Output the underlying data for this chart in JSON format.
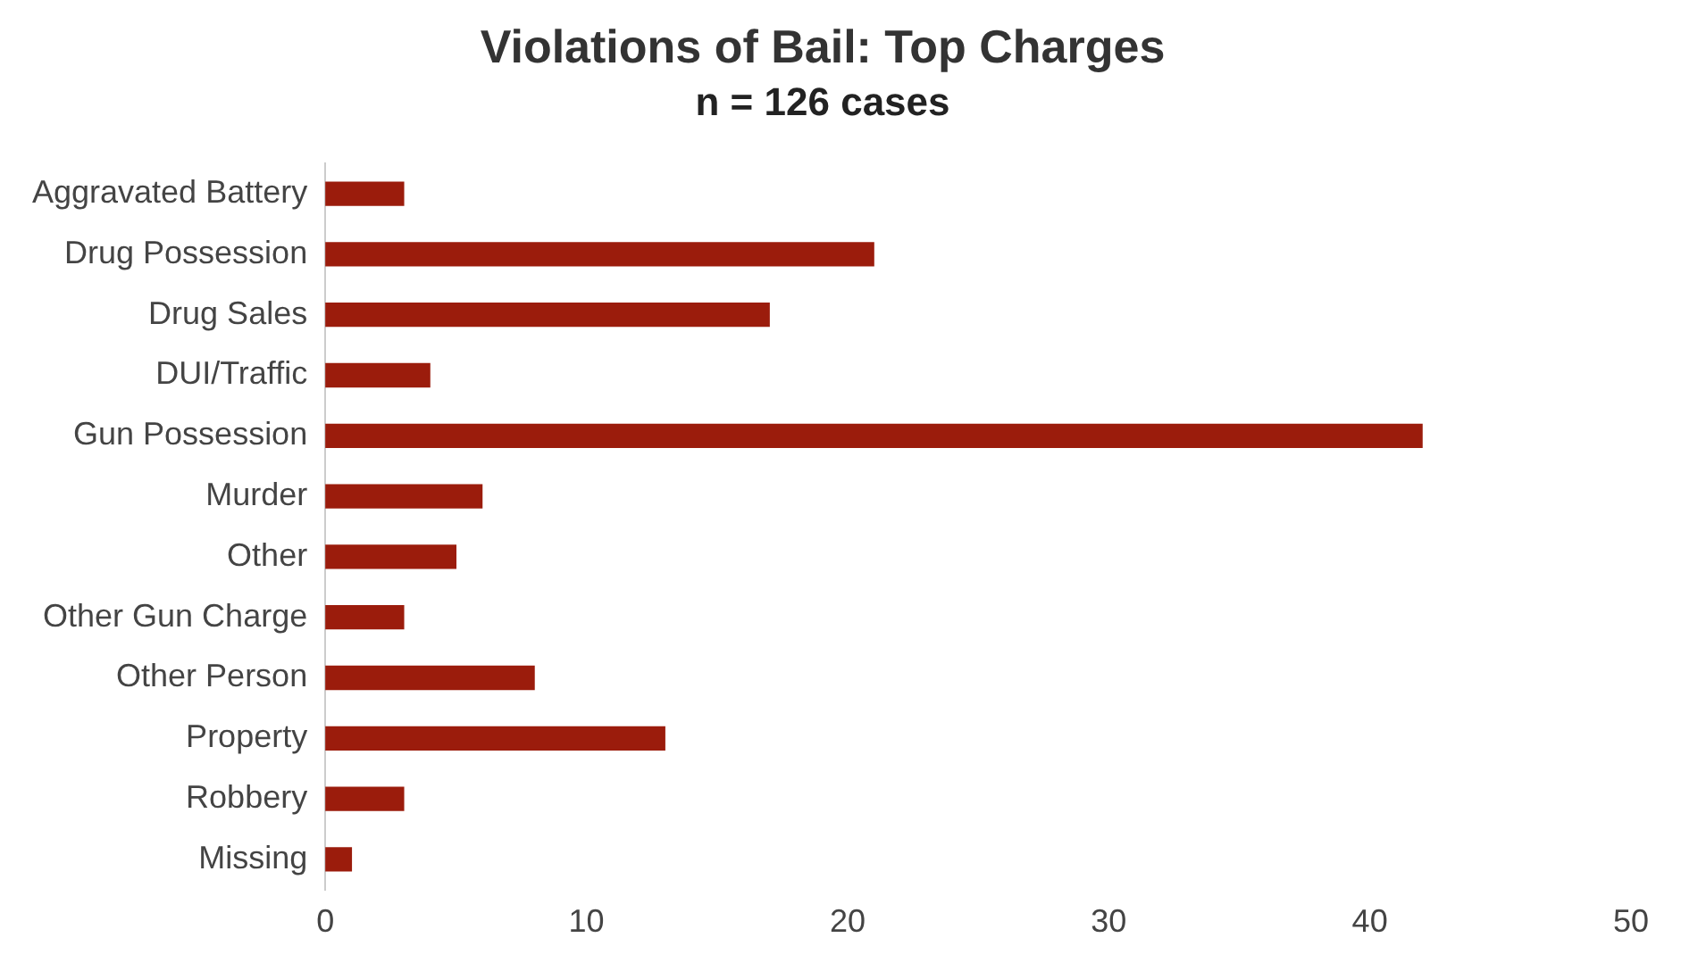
{
  "chart_data": {
    "type": "bar",
    "orientation": "horizontal",
    "title": "Violations of Bail: Top Charges",
    "subtitle": "n = 126 cases",
    "categories": [
      "Aggravated Battery",
      "Drug Possession",
      "Drug Sales",
      "DUI/Traffic",
      "Gun Possession",
      "Murder",
      "Other",
      "Other Gun Charge",
      "Other Person",
      "Property",
      "Robbery",
      "Missing"
    ],
    "values": [
      3,
      21,
      17,
      4,
      42,
      6,
      5,
      3,
      8,
      13,
      3,
      1
    ],
    "color": "#9b1c0c",
    "xlim": [
      0,
      50
    ],
    "xticks": [
      0,
      10,
      20,
      30,
      40,
      50
    ],
    "grid": false,
    "legend": false
  }
}
